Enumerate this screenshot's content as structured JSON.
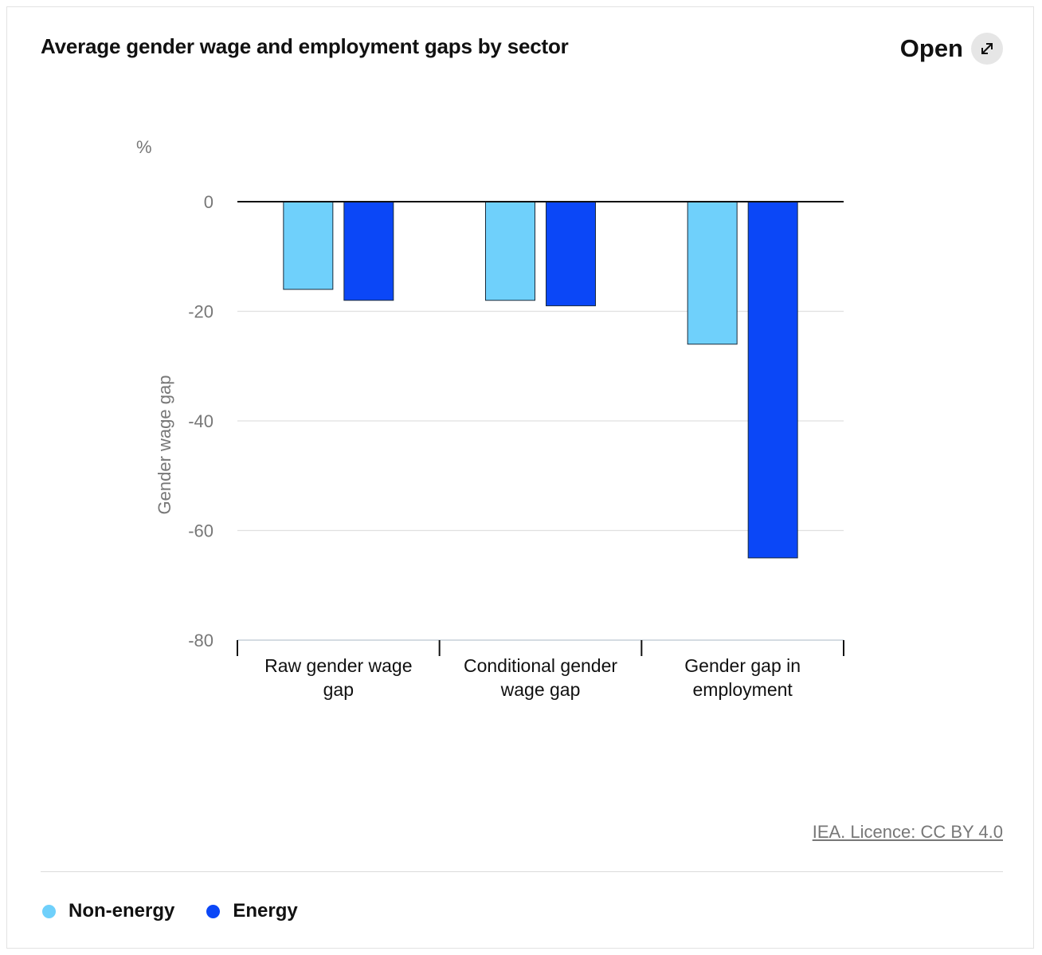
{
  "header": {
    "title": "Average gender wage and employment gaps by sector",
    "open_label": "Open",
    "open_icon": "expand-arrow-icon"
  },
  "footer": {
    "licence": "IEA. Licence: CC BY 4.0"
  },
  "colors": {
    "non_energy": "#6fd0fb",
    "energy": "#0b47f7",
    "grid": "#e0e0e0",
    "axis": "#111111",
    "tick_text": "#777777"
  },
  "chart_data": {
    "type": "bar",
    "unit_label": "%",
    "ylabel": "Gender wage gap",
    "ylim": [
      -80,
      0
    ],
    "yticks": [
      0,
      -20,
      -40,
      -60,
      -80
    ],
    "categories": [
      [
        "Raw gender wage",
        "gap"
      ],
      [
        "Conditional gender",
        "wage gap"
      ],
      [
        "Gender gap in",
        "employment"
      ]
    ],
    "series": [
      {
        "name": "Non-energy",
        "values": [
          -16,
          -18,
          -26
        ]
      },
      {
        "name": "Energy",
        "values": [
          -18,
          -19,
          -65
        ]
      }
    ],
    "legend_position": "bottom-left",
    "grid": true
  }
}
